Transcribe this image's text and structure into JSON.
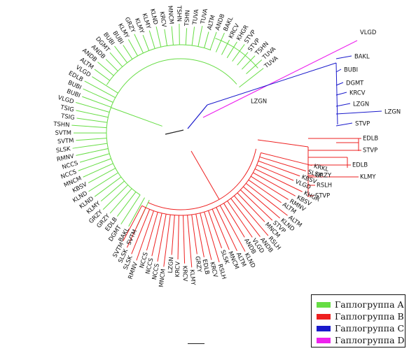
{
  "colors": {
    "A": "#66dd44",
    "B": "#ee2020",
    "C": "#1a1acc",
    "D": "#ee22ee",
    "root": "#222222"
  },
  "legend": [
    {
      "label": "Гаплогруппа A",
      "color": "#66dd44"
    },
    {
      "label": "Гаплогруппа B",
      "color": "#ee2020"
    },
    {
      "label": "Гаплогруппа C",
      "color": "#1a1acc"
    },
    {
      "label": "Гаплогруппа D",
      "color": "#ee22ee"
    }
  ],
  "haplogroup_a": [
    "SVTM",
    "BAKL",
    "DGMT",
    "EDLB",
    "GRZY",
    "GRZY",
    "KLMY",
    "KLND",
    "KLND",
    "KBSV",
    "MNCM",
    "NCCS",
    "NCCS",
    "RMNV",
    "SLSK",
    "SVTM",
    "SVTM",
    "TSHN",
    "TSIG",
    "TSIG",
    "VLGD",
    "BUBI",
    "BUBI",
    "EDLB",
    "VLGD",
    "ALTM",
    "ANDB",
    "ANDB",
    "DGMT",
    "BUBI",
    "BUBI",
    "KLMY",
    "GRZY",
    "KLMY",
    "KLMY",
    "KLND",
    "KRCV",
    "MNCM",
    "TSHN",
    "TSHN",
    "TUVA",
    "TUVA",
    "ALTM",
    "ANDB",
    "BAKL",
    "KRCV",
    "KHGR",
    "STVP",
    "STVP",
    "TSHN",
    "TUVA",
    "TUVA"
  ],
  "haplogroup_b_lower": [
    "SVTM",
    "SLSK",
    "SLSK",
    "RMNV",
    "NCCS",
    "NCCS",
    "NCCS",
    "MNCM",
    "LZGN",
    "KRCV",
    "KRCV",
    "KLMY",
    "GRZY",
    "EDLB",
    "KRCV",
    "RSLH",
    "SLSK",
    "MNCM",
    "ALTM",
    "KLND",
    "ANDB",
    "VLGD",
    "ANDB",
    "RSLH",
    "MNCM",
    "STVP",
    "KLND",
    "ALTM",
    "ALTM",
    "RMNV",
    "KBSV",
    "KHGR",
    "VLGD",
    "KBSV",
    "SLSK",
    "KRKL"
  ],
  "haplogroup_b_upper": [
    "GRZY",
    "RSLH",
    "STVP",
    "EDLB",
    "KLMY",
    "EDLB",
    "STVP"
  ],
  "haplogroup_c": [
    "BAKL",
    "BUBI",
    "DGMT",
    "KRCV",
    "LZGN",
    "LZGN",
    "STVP"
  ],
  "haplogroup_c_lzgn": "LZGN",
  "haplogroup_d": [
    "VLGD"
  ]
}
